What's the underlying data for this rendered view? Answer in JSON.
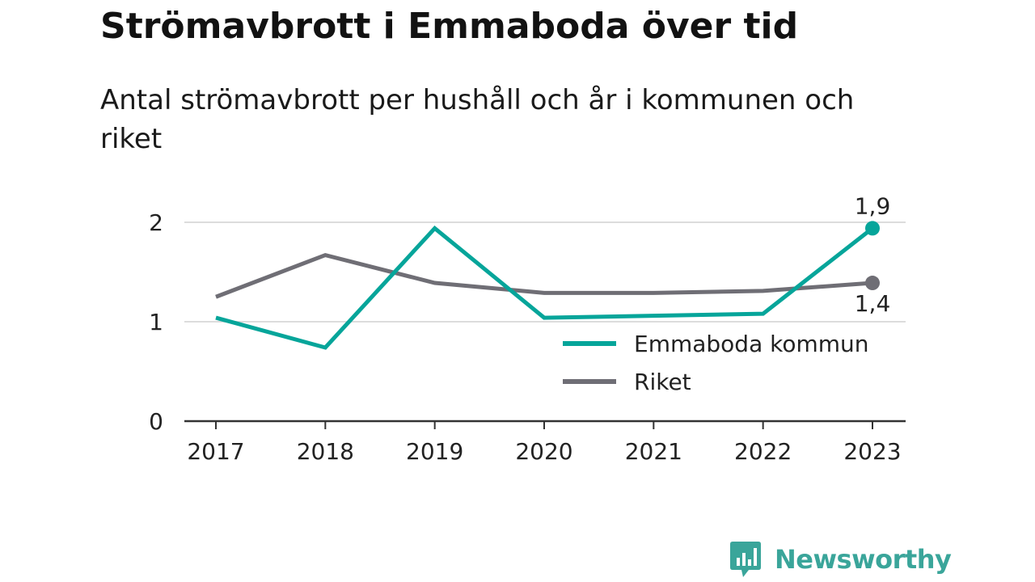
{
  "title": "Strömavbrott i Emmaboda över tid",
  "subtitle": "Antal strömavbrott per hushåll och år i kommunen och riket",
  "brand": {
    "name": "Newsworthy",
    "icon": "newsworthy-logo-icon",
    "color": "#3aa59a"
  },
  "chart_data": {
    "type": "line",
    "x": [
      "2017",
      "2018",
      "2019",
      "2020",
      "2021",
      "2022",
      "2023"
    ],
    "yticks": [
      "0",
      "1",
      "2"
    ],
    "ylim": [
      0,
      2.05
    ],
    "grid": true,
    "legend_position": "bottom-right",
    "series": [
      {
        "name": "Emmaboda kommun",
        "color": "#06a59a",
        "values": [
          1.04,
          0.74,
          1.94,
          1.04,
          1.06,
          1.08,
          1.94
        ],
        "end_label": "1,9"
      },
      {
        "name": "Riket",
        "color": "#6f6e75",
        "values": [
          1.25,
          1.67,
          1.39,
          1.29,
          1.29,
          1.31,
          1.39
        ],
        "end_label": "1,4"
      }
    ]
  }
}
